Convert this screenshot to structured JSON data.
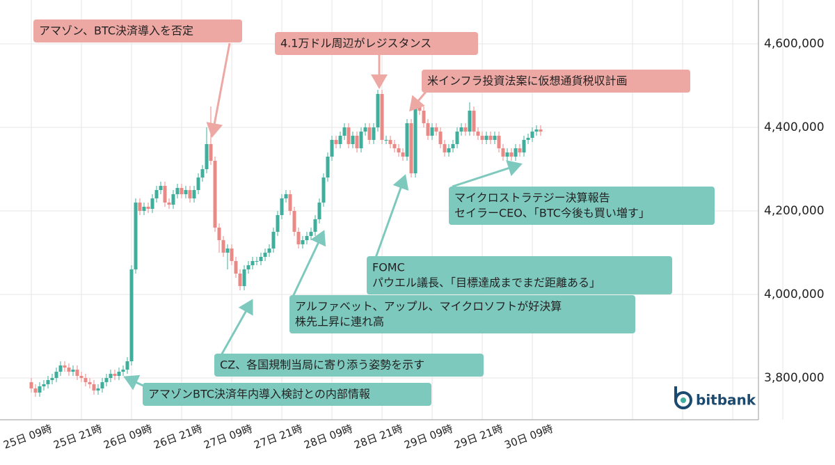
{
  "chart_data": {
    "type": "candlestick",
    "categories": [
      "25日 09時",
      null,
      null,
      null,
      null,
      null,
      null,
      null,
      null,
      null,
      null,
      null,
      "25日 21時",
      null,
      null,
      null,
      null,
      null,
      null,
      null,
      null,
      null,
      null,
      null,
      "26日 09時",
      null,
      null,
      null,
      null,
      null,
      null,
      null,
      null,
      null,
      null,
      null,
      "26日 21時",
      null,
      null,
      null,
      null,
      null,
      null,
      null,
      null,
      null,
      null,
      null,
      "27日 09時",
      null,
      null,
      null,
      null,
      null,
      null,
      null,
      null,
      null,
      null,
      null,
      "27日 21時",
      null,
      null,
      null,
      null,
      null,
      null,
      null,
      null,
      null,
      null,
      null,
      "28日 09時",
      null,
      null,
      null,
      null,
      null,
      null,
      null,
      null,
      null,
      null,
      null,
      "28日 21時",
      null,
      null,
      null,
      null,
      null,
      null,
      null,
      null,
      null,
      null,
      null,
      "29日 09時",
      null,
      null,
      null,
      null,
      null,
      null,
      null,
      null,
      null,
      null,
      null,
      "29日 21時",
      null,
      null,
      null,
      null,
      null,
      null,
      null,
      null,
      null,
      null,
      null,
      "30日 09時",
      null,
      null
    ],
    "open": [
      3790000,
      3775000,
      3765000,
      3780000,
      3785000,
      3795000,
      3800000,
      3815000,
      3830000,
      3825000,
      3815000,
      3820000,
      3805000,
      3800000,
      3790000,
      3785000,
      3770000,
      3775000,
      3790000,
      3800000,
      3810000,
      3805000,
      3815000,
      3820000,
      3840000,
      4060000,
      4220000,
      4200000,
      4210000,
      4205000,
      4230000,
      4250000,
      4260000,
      4220000,
      4215000,
      4240000,
      4255000,
      4240000,
      4250000,
      4230000,
      4250000,
      4280000,
      4300000,
      4360000,
      4320000,
      4160000,
      4130000,
      4100000,
      4110000,
      4080000,
      4050000,
      4020000,
      4060000,
      4070000,
      4080000,
      4080000,
      4090000,
      4100000,
      4110000,
      4150000,
      4190000,
      4230000,
      4240000,
      4200000,
      4150000,
      4120000,
      4130000,
      4140000,
      4150000,
      4180000,
      4220000,
      4280000,
      4330000,
      4370000,
      4360000,
      4380000,
      4400000,
      4360000,
      4380000,
      4350000,
      4390000,
      4400000,
      4370000,
      4400000,
      4480000,
      4370000,
      4370000,
      4360000,
      4350000,
      4340000,
      4330000,
      4410000,
      4290000,
      4450000,
      4440000,
      4410000,
      4380000,
      4400000,
      4390000,
      4360000,
      4340000,
      4350000,
      4360000,
      4390000,
      4400000,
      4390000,
      4440000,
      4390000,
      4380000,
      4370000,
      4380000,
      4370000,
      4380000,
      4350000,
      4330000,
      4340000,
      4330000,
      4350000,
      4340000,
      4370000,
      4375000,
      4390000,
      4395000
    ],
    "high": [
      3800000,
      3785000,
      3790000,
      3795000,
      3805000,
      3810000,
      3825000,
      3840000,
      3840000,
      3835000,
      3830000,
      3830000,
      3815000,
      3810000,
      3800000,
      3795000,
      3785000,
      3800000,
      3810000,
      3820000,
      3820000,
      3825000,
      3830000,
      3850000,
      4070000,
      4230000,
      4230000,
      4220000,
      4220000,
      4240000,
      4260000,
      4270000,
      4270000,
      4230000,
      4250000,
      4265000,
      4265000,
      4260000,
      4260000,
      4260000,
      4290000,
      4310000,
      4400000,
      4450000,
      4330000,
      4170000,
      4140000,
      4120000,
      4120000,
      4090000,
      4060000,
      4070000,
      4080000,
      4090000,
      4090000,
      4100000,
      4110000,
      4120000,
      4160000,
      4200000,
      4240000,
      4250000,
      4250000,
      4210000,
      4160000,
      4140000,
      4150000,
      4160000,
      4190000,
      4230000,
      4290000,
      4340000,
      4380000,
      4380000,
      4390000,
      4410000,
      4410000,
      4390000,
      4390000,
      4400000,
      4410000,
      4410000,
      4410000,
      4490000,
      4490000,
      4380000,
      4380000,
      4370000,
      4360000,
      4350000,
      4420000,
      4420000,
      4460000,
      4460000,
      4450000,
      4420000,
      4410000,
      4410000,
      4400000,
      4370000,
      4360000,
      4370000,
      4400000,
      4410000,
      4410000,
      4460000,
      4450000,
      4400000,
      4390000,
      4390000,
      4390000,
      4390000,
      4390000,
      4360000,
      4350000,
      4350000,
      4360000,
      4360000,
      4380000,
      4385000,
      4400000,
      4405000,
      4405000
    ],
    "low": [
      3765000,
      3755000,
      3755000,
      3770000,
      3775000,
      3785000,
      3790000,
      3805000,
      3815000,
      3805000,
      3805000,
      3795000,
      3790000,
      3780000,
      3775000,
      3760000,
      3760000,
      3765000,
      3780000,
      3790000,
      3795000,
      3795000,
      3805000,
      3810000,
      3830000,
      4050000,
      4190000,
      4190000,
      4195000,
      4195000,
      4220000,
      4240000,
      4210000,
      4205000,
      4205000,
      4230000,
      4230000,
      4230000,
      4220000,
      4220000,
      4240000,
      4270000,
      4290000,
      4310000,
      4150000,
      4100000,
      4090000,
      4060000,
      4070000,
      4040000,
      4010000,
      4010000,
      4050000,
      4060000,
      4070000,
      4070000,
      4080000,
      4090000,
      4100000,
      4140000,
      4180000,
      4220000,
      4190000,
      4140000,
      4110000,
      4110000,
      4120000,
      4130000,
      4140000,
      4170000,
      4210000,
      4270000,
      4320000,
      4350000,
      4350000,
      4370000,
      4350000,
      4350000,
      4340000,
      4340000,
      4380000,
      4360000,
      4360000,
      4390000,
      4360000,
      4360000,
      4350000,
      4340000,
      4330000,
      4320000,
      4320000,
      4280000,
      4280000,
      4430000,
      4400000,
      4370000,
      4370000,
      4380000,
      4350000,
      4330000,
      4330000,
      4340000,
      4350000,
      4380000,
      4380000,
      4380000,
      4380000,
      4370000,
      4360000,
      4360000,
      4360000,
      4360000,
      4340000,
      4320000,
      4320000,
      4320000,
      4320000,
      4330000,
      4330000,
      4360000,
      4365000,
      4380000,
      4380000
    ],
    "close": [
      3775000,
      3765000,
      3780000,
      3785000,
      3795000,
      3800000,
      3815000,
      3830000,
      3825000,
      3815000,
      3820000,
      3805000,
      3800000,
      3790000,
      3785000,
      3770000,
      3775000,
      3790000,
      3800000,
      3810000,
      3805000,
      3815000,
      3820000,
      3840000,
      4060000,
      4220000,
      4200000,
      4210000,
      4205000,
      4230000,
      4250000,
      4260000,
      4220000,
      4215000,
      4240000,
      4255000,
      4240000,
      4250000,
      4230000,
      4250000,
      4280000,
      4300000,
      4360000,
      4320000,
      4160000,
      4130000,
      4100000,
      4110000,
      4080000,
      4050000,
      4020000,
      4060000,
      4070000,
      4080000,
      4080000,
      4090000,
      4100000,
      4110000,
      4150000,
      4190000,
      4230000,
      4240000,
      4200000,
      4150000,
      4120000,
      4130000,
      4140000,
      4150000,
      4180000,
      4220000,
      4280000,
      4330000,
      4370000,
      4360000,
      4380000,
      4400000,
      4360000,
      4380000,
      4350000,
      4390000,
      4400000,
      4370000,
      4400000,
      4480000,
      4370000,
      4370000,
      4360000,
      4350000,
      4340000,
      4330000,
      4410000,
      4290000,
      4450000,
      4440000,
      4410000,
      4380000,
      4400000,
      4390000,
      4360000,
      4340000,
      4350000,
      4360000,
      4390000,
      4400000,
      4390000,
      4440000,
      4390000,
      4380000,
      4370000,
      4380000,
      4370000,
      4380000,
      4350000,
      4330000,
      4340000,
      4330000,
      4350000,
      4340000,
      4370000,
      4375000,
      4390000,
      4395000,
      4390000
    ],
    "up_color": "#3fae9d",
    "down_color": "#ea8a86",
    "ylim": [
      3700000,
      4700000
    ],
    "yticks": [
      {
        "value": 3800000,
        "label": "3,800,000"
      },
      {
        "value": 4000000,
        "label": "4,000,000"
      },
      {
        "value": 4200000,
        "label": "4,200,000"
      },
      {
        "value": 4400000,
        "label": "4,400,000"
      },
      {
        "value": 4600000,
        "label": "4,600,000"
      }
    ],
    "grid": true,
    "annotations": [
      {
        "lines": [
          "アマゾン、BTC決済導入を否定"
        ],
        "color": "#eda8a4"
      },
      {
        "lines": [
          "4.1万ドル周辺がレジスタンス"
        ],
        "color": "#eda8a4"
      },
      {
        "lines": [
          "米インフラ投資法案に仮想通貨税収計画"
        ],
        "color": "#eda8a4"
      },
      {
        "lines": [
          "マイクロストラテジー決算報告",
          "セイラーCEO、「BTC今後も買い増す」"
        ],
        "color": "#7ec9be"
      },
      {
        "lines": [
          "FOMC",
          "パウエル議長、「目標達成までまだ距離ある」"
        ],
        "color": "#7ec9be"
      },
      {
        "lines": [
          "アルファベット、アップル、マイクロソフトが好決算",
          "株先上昇に連れ高"
        ],
        "color": "#7ec9be"
      },
      {
        "lines": [
          "CZ、各国規制当局に寄り添う姿勢を示す"
        ],
        "color": "#7ec9be"
      },
      {
        "lines": [
          "アマゾンBTC決済年内導入検討との内部情報"
        ],
        "color": "#7ec9be"
      }
    ],
    "logo": "bitbank"
  }
}
